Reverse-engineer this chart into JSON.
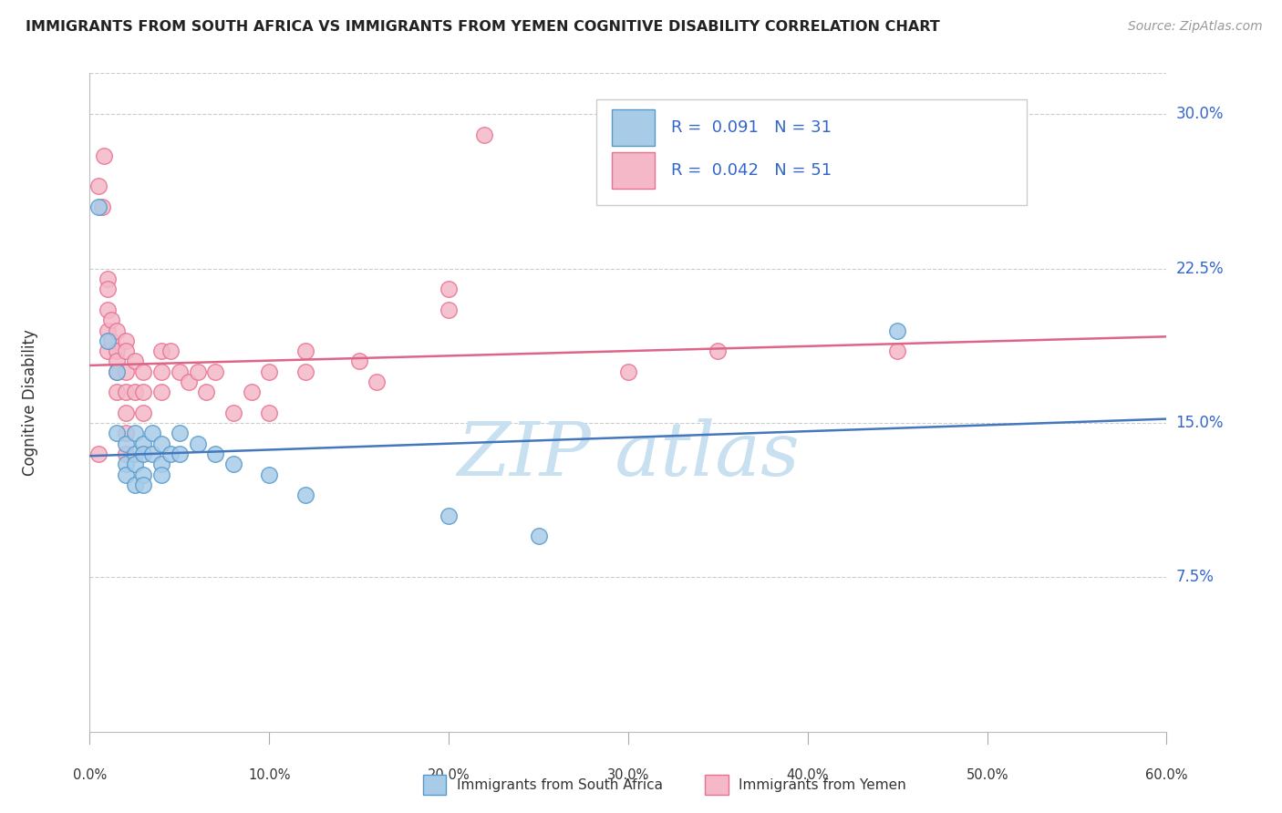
{
  "title": "IMMIGRANTS FROM SOUTH AFRICA VS IMMIGRANTS FROM YEMEN COGNITIVE DISABILITY CORRELATION CHART",
  "source_text": "Source: ZipAtlas.com",
  "ylabel": "Cognitive Disability",
  "ytick_vals": [
    0.075,
    0.15,
    0.225,
    0.3
  ],
  "ytick_labels": [
    "7.5%",
    "15.0%",
    "22.5%",
    "30.0%"
  ],
  "xtick_vals": [
    0.0,
    0.1,
    0.2,
    0.3,
    0.4,
    0.5,
    0.6
  ],
  "xtick_labels": [
    "0.0%",
    "10.0%",
    "20.0%",
    "30.0%",
    "40.0%",
    "50.0%",
    "60.0%"
  ],
  "xlim": [
    0.0,
    0.6
  ],
  "ylim": [
    0.0,
    0.32
  ],
  "r_blue": 0.091,
  "n_blue": 31,
  "r_pink": 0.042,
  "n_pink": 51,
  "legend_label_blue": "Immigrants from South Africa",
  "legend_label_pink": "Immigrants from Yemen",
  "blue_color": "#a8cce8",
  "pink_color": "#f4b8c8",
  "blue_edge_color": "#5599cc",
  "pink_edge_color": "#e87090",
  "blue_line_color": "#4477bb",
  "pink_line_color": "#dd6688",
  "legend_r_n_color": "#3366cc",
  "legend_r_label_color": "#333333",
  "watermark_color": "#c8e0f0",
  "blue_scatter": [
    [
      0.005,
      0.255
    ],
    [
      0.01,
      0.19
    ],
    [
      0.015,
      0.175
    ],
    [
      0.015,
      0.145
    ],
    [
      0.02,
      0.14
    ],
    [
      0.02,
      0.13
    ],
    [
      0.02,
      0.125
    ],
    [
      0.025,
      0.145
    ],
    [
      0.025,
      0.135
    ],
    [
      0.025,
      0.13
    ],
    [
      0.025,
      0.12
    ],
    [
      0.03,
      0.14
    ],
    [
      0.03,
      0.135
    ],
    [
      0.03,
      0.125
    ],
    [
      0.03,
      0.12
    ],
    [
      0.035,
      0.145
    ],
    [
      0.035,
      0.135
    ],
    [
      0.04,
      0.14
    ],
    [
      0.04,
      0.13
    ],
    [
      0.04,
      0.125
    ],
    [
      0.045,
      0.135
    ],
    [
      0.05,
      0.145
    ],
    [
      0.05,
      0.135
    ],
    [
      0.06,
      0.14
    ],
    [
      0.07,
      0.135
    ],
    [
      0.08,
      0.13
    ],
    [
      0.1,
      0.125
    ],
    [
      0.12,
      0.115
    ],
    [
      0.2,
      0.105
    ],
    [
      0.25,
      0.095
    ],
    [
      0.45,
      0.195
    ]
  ],
  "pink_scatter": [
    [
      0.005,
      0.265
    ],
    [
      0.007,
      0.255
    ],
    [
      0.008,
      0.28
    ],
    [
      0.01,
      0.22
    ],
    [
      0.01,
      0.215
    ],
    [
      0.01,
      0.205
    ],
    [
      0.01,
      0.195
    ],
    [
      0.01,
      0.185
    ],
    [
      0.012,
      0.2
    ],
    [
      0.012,
      0.19
    ],
    [
      0.015,
      0.195
    ],
    [
      0.015,
      0.185
    ],
    [
      0.015,
      0.18
    ],
    [
      0.015,
      0.175
    ],
    [
      0.015,
      0.165
    ],
    [
      0.02,
      0.19
    ],
    [
      0.02,
      0.185
    ],
    [
      0.02,
      0.175
    ],
    [
      0.02,
      0.165
    ],
    [
      0.02,
      0.155
    ],
    [
      0.02,
      0.145
    ],
    [
      0.02,
      0.135
    ],
    [
      0.025,
      0.18
    ],
    [
      0.025,
      0.165
    ],
    [
      0.03,
      0.175
    ],
    [
      0.03,
      0.165
    ],
    [
      0.03,
      0.155
    ],
    [
      0.04,
      0.185
    ],
    [
      0.04,
      0.175
    ],
    [
      0.04,
      0.165
    ],
    [
      0.045,
      0.185
    ],
    [
      0.05,
      0.175
    ],
    [
      0.055,
      0.17
    ],
    [
      0.06,
      0.175
    ],
    [
      0.065,
      0.165
    ],
    [
      0.07,
      0.175
    ],
    [
      0.08,
      0.155
    ],
    [
      0.09,
      0.165
    ],
    [
      0.1,
      0.175
    ],
    [
      0.1,
      0.155
    ],
    [
      0.12,
      0.185
    ],
    [
      0.12,
      0.175
    ],
    [
      0.15,
      0.18
    ],
    [
      0.16,
      0.17
    ],
    [
      0.2,
      0.215
    ],
    [
      0.2,
      0.205
    ],
    [
      0.22,
      0.29
    ],
    [
      0.3,
      0.175
    ],
    [
      0.35,
      0.185
    ],
    [
      0.45,
      0.185
    ],
    [
      0.005,
      0.135
    ]
  ],
  "blue_trend_x": [
    0.0,
    0.6
  ],
  "blue_trend_y": [
    0.134,
    0.152
  ],
  "pink_trend_x": [
    0.0,
    0.6
  ],
  "pink_trend_y": [
    0.178,
    0.192
  ]
}
